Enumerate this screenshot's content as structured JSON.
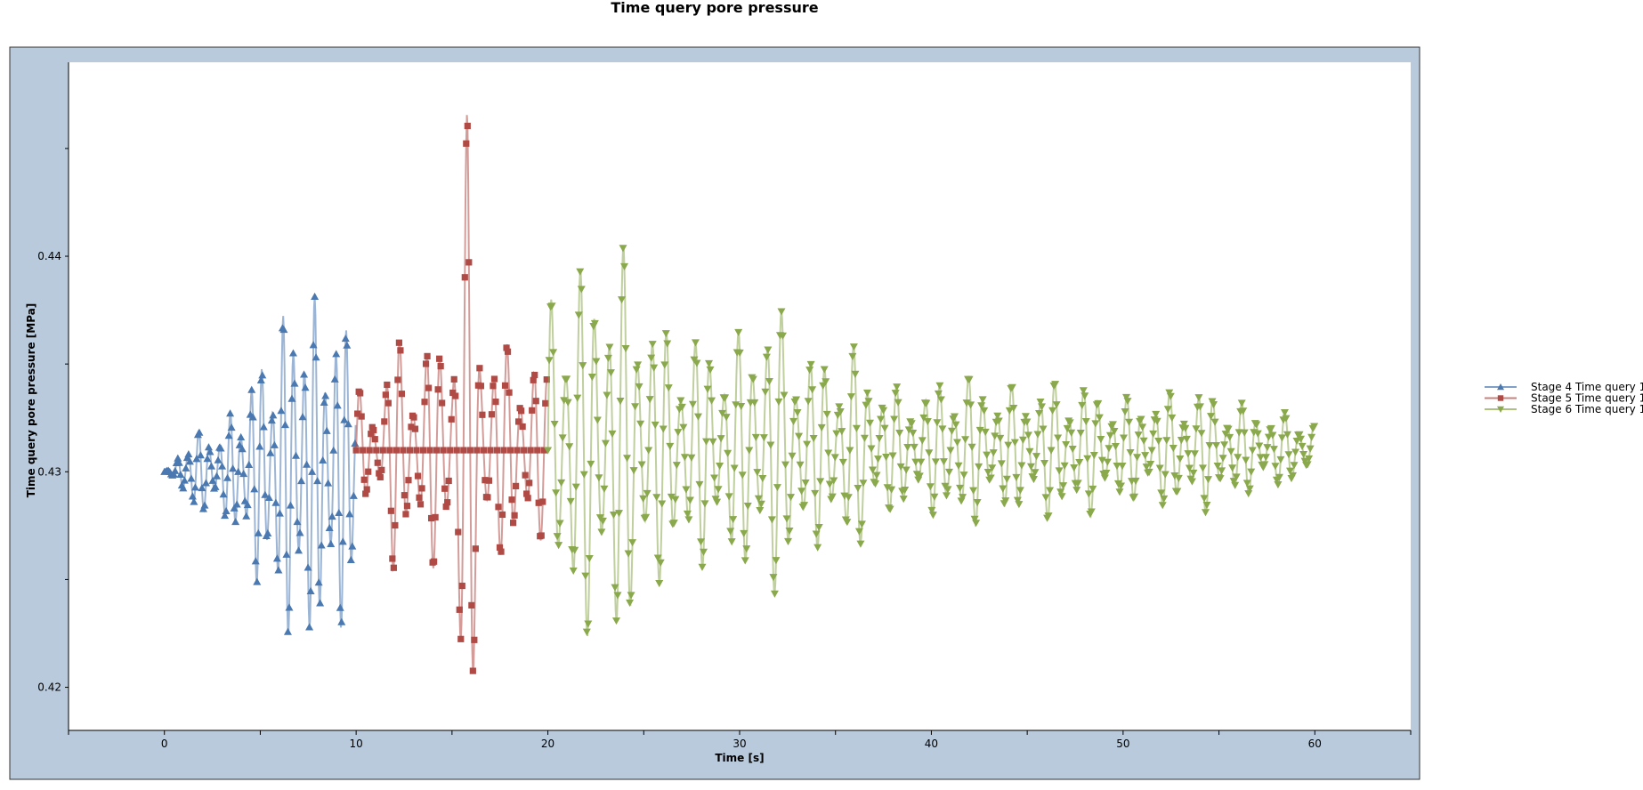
{
  "chart_data": {
    "type": "line",
    "title": "Time query pore pressure",
    "xlabel": "Time [s]",
    "ylabel": "Time query pore pressure [MPa]",
    "xlim": [
      -5,
      65
    ],
    "ylim": [
      0.418,
      0.449
    ],
    "xticks_major": [
      0,
      10,
      20,
      30,
      40,
      50,
      60
    ],
    "xtick_labels": [
      "0",
      "10",
      "20",
      "30",
      "40",
      "50",
      "60"
    ],
    "yticks_major": [
      0.42,
      0.43,
      0.44
    ],
    "ytick_labels": [
      "0.42",
      "0.43",
      "0.44"
    ],
    "grid": false,
    "legend_placement": "right",
    "colors": {
      "panel_bg": "#b9cadd",
      "plot_bg": "#ffffff"
    },
    "series": [
      {
        "name": "Stage 4 Time query 1",
        "color": "#4a78b0",
        "marker": "triangle-up",
        "x_range": [
          0,
          10
        ],
        "base": 0.43,
        "envelope": [
          [
            0,
            0.0
          ],
          [
            0.5,
            0.0002
          ],
          [
            1,
            0.0018
          ],
          [
            2,
            0.002
          ],
          [
            3,
            0.002
          ],
          [
            4,
            0.0038
          ],
          [
            5,
            0.0055
          ],
          [
            6,
            0.0072
          ],
          [
            7,
            0.009
          ],
          [
            8,
            0.008
          ],
          [
            9,
            0.0075
          ],
          [
            10,
            0.007
          ]
        ],
        "oscillation_period": 0.55
      },
      {
        "name": "Stage 5 Time query 1",
        "color": "#b04a45",
        "marker": "square",
        "x_range": [
          10,
          20
        ],
        "base": 0.431,
        "envelope": [
          [
            10,
            0.003
          ],
          [
            11,
            0.002
          ],
          [
            12,
            0.006
          ],
          [
            13,
            0.004
          ],
          [
            14,
            0.0055
          ],
          [
            15,
            0.006
          ],
          [
            15.8,
            0.016
          ],
          [
            16.5,
            0.006
          ],
          [
            17,
            0.0055
          ],
          [
            18,
            0.005
          ],
          [
            19,
            0.0045
          ],
          [
            20,
            0.004
          ]
        ],
        "oscillation_period": 0.7
      },
      {
        "name": "Stage 6 Time query 1",
        "color": "#8aa84c",
        "marker": "triangle-down",
        "x_range": [
          20,
          60
        ],
        "base": 0.431,
        "envelope": [
          [
            20,
            0.008
          ],
          [
            22,
            0.009
          ],
          [
            24,
            0.0095
          ],
          [
            26,
            0.006
          ],
          [
            28,
            0.0055
          ],
          [
            30,
            0.0055
          ],
          [
            31.5,
            0.0075
          ],
          [
            34,
            0.0045
          ],
          [
            36,
            0.005
          ],
          [
            38,
            0.003
          ],
          [
            40,
            0.003
          ],
          [
            41,
            0.004
          ],
          [
            44,
            0.003
          ],
          [
            47,
            0.0035
          ],
          [
            50,
            0.0025
          ],
          [
            54,
            0.003
          ],
          [
            57,
            0.002
          ],
          [
            60,
            0.0015
          ]
        ],
        "oscillation_period": 0.75
      }
    ]
  }
}
